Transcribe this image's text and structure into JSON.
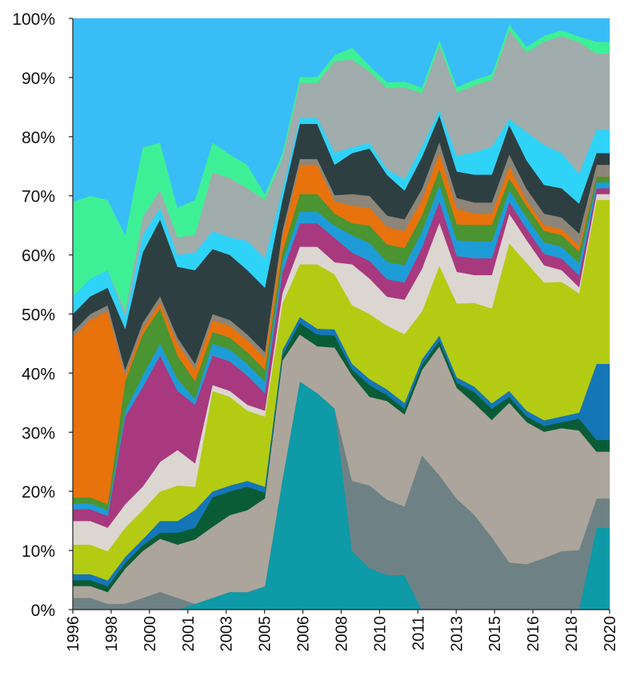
{
  "chart_data": {
    "type": "area",
    "stacked": true,
    "normalized": true,
    "title": "",
    "xlabel": "",
    "ylabel": "",
    "ylim": [
      0,
      100
    ],
    "grid": false,
    "legend": "none",
    "y_ticks": [
      "0%",
      "10%",
      "20%",
      "30%",
      "40%",
      "50%",
      "60%",
      "70%",
      "80%",
      "90%",
      "100%"
    ],
    "x_tick_labels": [
      "1996",
      "1998",
      "2000",
      "2001",
      "2003",
      "2005",
      "2006",
      "2008",
      "2010",
      "2011",
      "2013",
      "2015",
      "2016",
      "2018",
      "2020"
    ],
    "x": [
      1996.0,
      1996.8,
      1997.6,
      1998.4,
      1999.2,
      2000.0,
      2000.8,
      2001.6,
      2002.4,
      2003.2,
      2004.0,
      2004.8,
      2005.6,
      2006.4,
      2007.2,
      2008.0,
      2008.8,
      2009.6,
      2010.4,
      2011.2,
      2012.0,
      2012.8,
      2013.6,
      2014.4,
      2015.2,
      2016.0,
      2016.8,
      2017.6,
      2018.4,
      2019.2,
      2020.0,
      2020.6
    ],
    "series": [
      {
        "color": "#0e9aa7",
        "values": [
          0,
          0,
          0,
          0,
          0,
          0,
          0,
          1,
          2,
          3,
          3,
          4,
          25,
          39,
          37,
          33,
          10,
          7,
          6,
          6,
          0,
          0,
          0,
          0,
          0,
          0,
          0,
          0,
          0,
          0,
          14,
          14
        ]
      },
      {
        "color": "#6e8285",
        "values": [
          2,
          2,
          1,
          1,
          2,
          3,
          2,
          0,
          0,
          0,
          0,
          0,
          0,
          0,
          0,
          0,
          12,
          14,
          13,
          12,
          29,
          25,
          21,
          17,
          13,
          8,
          8,
          9,
          10,
          10,
          5,
          5
        ]
      },
      {
        "color": "#aca59b",
        "values": [
          2,
          2,
          2,
          6,
          8,
          9,
          9,
          11,
          12,
          13,
          14,
          15,
          23,
          8,
          8,
          10,
          18,
          15,
          17,
          16,
          16,
          24,
          21,
          20,
          21,
          27,
          25,
          22,
          21,
          20,
          8,
          8
        ]
      },
      {
        "color": "#0a5c36",
        "values": [
          1,
          1,
          1,
          1,
          1,
          1,
          2,
          2,
          5,
          4,
          4,
          1,
          1,
          2,
          2,
          2,
          1,
          2,
          1,
          1,
          1,
          1,
          1,
          2,
          2,
          1,
          1,
          1,
          1,
          2,
          2,
          2
        ]
      },
      {
        "color": "#1476b6",
        "values": [
          1,
          1,
          1,
          1,
          1,
          2,
          2,
          3,
          1,
          1,
          1,
          1,
          1,
          1,
          1,
          1,
          1,
          1,
          1,
          1,
          1,
          1,
          1,
          1,
          1,
          1,
          1,
          1,
          1,
          1,
          13,
          13
        ]
      },
      {
        "color": "#b4cb14",
        "values": [
          5,
          5,
          5,
          5,
          5,
          5,
          6,
          4,
          17,
          15,
          12,
          12,
          9,
          9,
          11,
          9,
          10,
          11,
          11,
          12,
          9,
          13,
          14,
          15,
          17,
          25,
          26,
          24,
          23,
          20,
          28,
          28
        ]
      },
      {
        "color": "#dcd6d0",
        "values": [
          4,
          4,
          4,
          4,
          4,
          5,
          6,
          4,
          1,
          1,
          1,
          1,
          2,
          3,
          3,
          2,
          7,
          6,
          5,
          6,
          8,
          8,
          6,
          5,
          6,
          5,
          4,
          3,
          2,
          1,
          1,
          1
        ]
      },
      {
        "color": "#a8397f",
        "values": [
          2,
          2,
          2,
          15,
          17,
          18,
          10,
          10,
          5,
          5,
          5,
          3,
          4,
          4,
          4,
          4,
          2,
          3,
          3,
          3,
          4,
          4,
          3,
          3,
          3,
          2,
          2,
          2,
          2,
          2,
          1,
          1
        ]
      },
      {
        "color": "#1e9cd7",
        "values": [
          1,
          1,
          1,
          1,
          2,
          2,
          2,
          1,
          2,
          2,
          2,
          2,
          2,
          2,
          2,
          2,
          3,
          3,
          3,
          3,
          3,
          3,
          3,
          3,
          3,
          2,
          2,
          2,
          2,
          2,
          1,
          1
        ]
      },
      {
        "color": "#4a9431",
        "values": [
          1,
          1,
          1,
          5,
          7,
          6,
          4,
          3,
          2,
          2,
          2,
          2,
          2,
          3,
          3,
          2,
          2,
          3,
          3,
          3,
          3,
          3,
          3,
          3,
          3,
          2,
          2,
          2,
          2,
          2,
          1,
          1
        ]
      },
      {
        "color": "#e8720c",
        "values": [
          27,
          30,
          33,
          1,
          1,
          1,
          2,
          2,
          2,
          2,
          2,
          2,
          3,
          5,
          5,
          2,
          3,
          3,
          3,
          3,
          3,
          3,
          3,
          2,
          2,
          2,
          1,
          1,
          1,
          1,
          0,
          0
        ]
      },
      {
        "color": "#8c8578",
        "values": [
          1,
          1,
          1,
          1,
          1,
          1,
          1,
          1,
          1,
          1,
          1,
          1,
          1,
          1,
          1,
          1,
          2,
          2,
          2,
          2,
          2,
          2,
          2,
          2,
          2,
          2,
          2,
          2,
          2,
          2,
          2,
          2
        ]
      },
      {
        "color": "#2e3f42",
        "values": [
          3,
          3,
          3,
          7,
          12,
          13,
          12,
          16,
          11,
          11,
          11,
          11,
          6,
          6,
          6,
          5,
          7,
          8,
          7,
          5,
          6,
          5,
          5,
          5,
          5,
          5,
          5,
          5,
          5,
          5,
          2,
          2
        ]
      },
      {
        "color": "#2fd3f7",
        "values": [
          3,
          3,
          3,
          2,
          3,
          2,
          2,
          3,
          3,
          3,
          5,
          5,
          2,
          1,
          1,
          2,
          1,
          1,
          1,
          2,
          2,
          1,
          3,
          4,
          5,
          1,
          5,
          7,
          6,
          5,
          4,
          4
        ]
      },
      {
        "color": "#a1acad",
        "values": [
          0,
          0,
          0,
          1,
          3,
          3,
          3,
          3,
          10,
          10,
          9,
          10,
          6,
          6,
          6,
          15,
          15,
          12,
          14,
          16,
          10,
          12,
          12,
          12,
          12,
          15,
          14,
          18,
          20,
          22,
          13,
          13
        ]
      },
      {
        "color": "#3ef095",
        "values": [
          16,
          14,
          12,
          13,
          12,
          8,
          5,
          6,
          5,
          4,
          4,
          1,
          1,
          1,
          1,
          1,
          2,
          1,
          1,
          1,
          1,
          1,
          1,
          1,
          1,
          1,
          1,
          1,
          1,
          1,
          2,
          2
        ]
      },
      {
        "color": "#39bdf7",
        "values": [
          31,
          30,
          31,
          37,
          22,
          21,
          32,
          31,
          21,
          23,
          25,
          30,
          26,
          10,
          10,
          6,
          5,
          8,
          11,
          11,
          13,
          4,
          13,
          11,
          10,
          1,
          5,
          3,
          2,
          3,
          4,
          4
        ]
      }
    ]
  }
}
